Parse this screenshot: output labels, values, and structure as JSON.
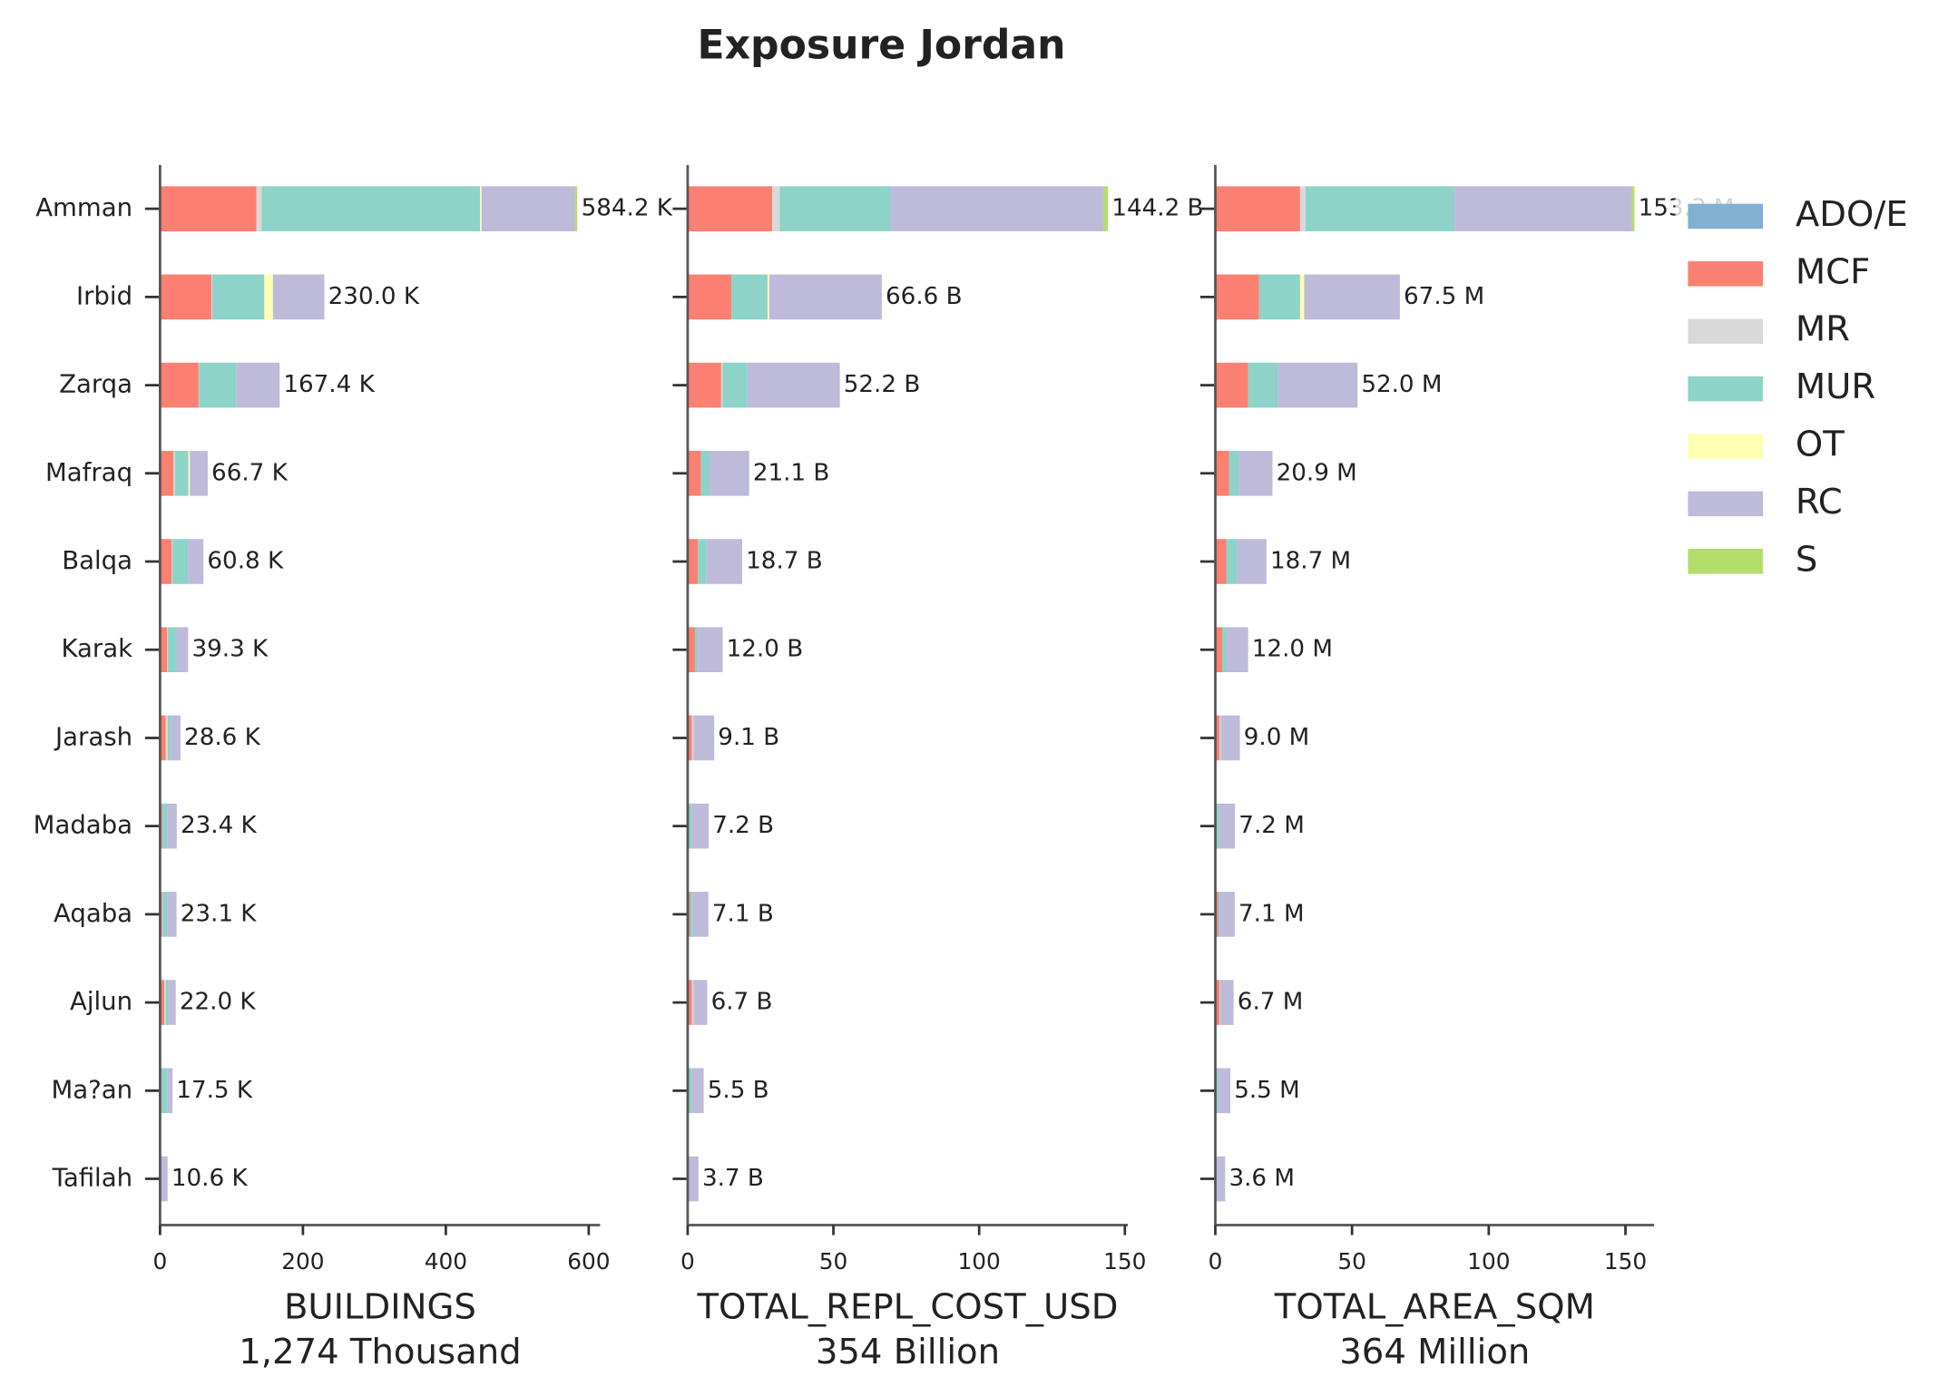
{
  "title": "Exposure Jordan",
  "chart_data": [
    {
      "type": "barh",
      "xlabel": "BUILDINGS",
      "total_label": "1,274 Thousand",
      "categories": [
        "Amman",
        "Irbid",
        "Zarqa",
        "Mafraq",
        "Balqa",
        "Karak",
        "Jarash",
        "Madaba",
        "Aqaba",
        "Ajlun",
        "Ma?an",
        "Tafilah"
      ],
      "xlim": [
        0,
        616
      ],
      "xticks": [
        0,
        200,
        400,
        600
      ],
      "series": [
        {
          "name": "ADO/E",
          "color": "#80b1d3",
          "values": [
            0,
            0,
            0,
            0,
            0,
            0,
            0,
            0,
            0,
            0,
            0,
            0
          ]
        },
        {
          "name": "MCF",
          "color": "#fb8072",
          "values": [
            135,
            72,
            54,
            19,
            16,
            10,
            8,
            3,
            3,
            6,
            2,
            1
          ]
        },
        {
          "name": "MR",
          "color": "#d9d9d9",
          "values": [
            7,
            1,
            0.4,
            1.7,
            1,
            1,
            3,
            0,
            1,
            2,
            0,
            0
          ]
        },
        {
          "name": "MUR",
          "color": "#8dd3c7",
          "values": [
            306,
            73,
            52,
            19,
            22,
            12,
            4,
            7,
            6,
            4,
            8,
            0
          ]
        },
        {
          "name": "OT",
          "color": "#ffffb3",
          "values": [
            2,
            12,
            0,
            2,
            0,
            0,
            0,
            0,
            0,
            0,
            0,
            0
          ]
        },
        {
          "name": "RC",
          "color": "#bebada",
          "values": [
            131,
            72,
            61,
            25,
            21.8,
            16.3,
            13.6,
            13.4,
            13.1,
            10,
            7.5,
            9.6
          ]
        },
        {
          "name": "S",
          "color": "#b3de69",
          "values": [
            3,
            0,
            0,
            0,
            0,
            0,
            0,
            0,
            0,
            0,
            0,
            0
          ]
        }
      ],
      "totals": [
        584.2,
        230.0,
        167.4,
        66.7,
        60.8,
        39.3,
        28.6,
        23.4,
        23.1,
        22.0,
        17.5,
        10.6
      ],
      "total_labels": [
        "584.2 K",
        "230.0 K",
        "167.4 K",
        "66.7 K",
        "60.8 K",
        "39.3 K",
        "28.6 K",
        "23.4 K",
        "23.1 K",
        "22.0 K",
        "17.5 K",
        "10.6 K"
      ]
    },
    {
      "type": "barh",
      "xlabel": "TOTAL_REPL_COST_USD",
      "total_label": "354 Billion",
      "xlim": [
        0,
        151
      ],
      "xticks": [
        0,
        50,
        100,
        150
      ],
      "series": [
        {
          "name": "ADO/E",
          "color": "#80b1d3",
          "values": [
            0,
            0,
            0,
            0,
            0,
            0,
            0,
            0,
            0,
            0,
            0,
            0
          ]
        },
        {
          "name": "MCF",
          "color": "#fb8072",
          "values": [
            29,
            15,
            11.5,
            4.5,
            3.5,
            2.5,
            1.5,
            0.5,
            0.8,
            1.5,
            0.5,
            0.2
          ]
        },
        {
          "name": "MR",
          "color": "#d9d9d9",
          "values": [
            2.6,
            0,
            0.5,
            0,
            0,
            0,
            0.5,
            0,
            0,
            0.5,
            0,
            0
          ]
        },
        {
          "name": "MUR",
          "color": "#8dd3c7",
          "values": [
            38,
            12.4,
            8.5,
            3,
            3,
            1,
            0,
            1,
            1,
            0,
            1,
            0
          ]
        },
        {
          "name": "OT",
          "color": "#ffffb3",
          "values": [
            0,
            0.6,
            0,
            0,
            0,
            0,
            0,
            0,
            0,
            0,
            0,
            0
          ]
        },
        {
          "name": "RC",
          "color": "#bebada",
          "values": [
            73,
            38.6,
            31.7,
            13.6,
            12.2,
            8.5,
            7.1,
            5.7,
            5.3,
            4.7,
            4,
            3.5
          ]
        },
        {
          "name": "S",
          "color": "#b3de69",
          "values": [
            1.6,
            0,
            0,
            0,
            0,
            0,
            0,
            0,
            0,
            0,
            0,
            0
          ]
        }
      ],
      "totals": [
        144.2,
        66.6,
        52.2,
        21.1,
        18.7,
        12.0,
        9.1,
        7.2,
        7.1,
        6.7,
        5.5,
        3.7
      ],
      "total_labels": [
        "144.2 B",
        "66.6 B",
        "52.2 B",
        "21.1 B",
        "18.7 B",
        "12.0 B",
        "9.1 B",
        "7.2 B",
        "7.1 B",
        "6.7 B",
        "5.5 B",
        "3.7 B"
      ]
    },
    {
      "type": "barh",
      "xlabel": "TOTAL_AREA_SQM",
      "total_label": "364 Million",
      "xlim": [
        0,
        160.5
      ],
      "xticks": [
        0,
        50,
        100,
        150
      ],
      "series": [
        {
          "name": "ADO/E",
          "color": "#80b1d3",
          "values": [
            0,
            0,
            0,
            0,
            0,
            0,
            0,
            0,
            0,
            0,
            0,
            0
          ]
        },
        {
          "name": "MCF",
          "color": "#fb8072",
          "values": [
            31,
            16,
            12,
            5,
            4,
            2.5,
            1.5,
            0.5,
            1,
            1.5,
            0.5,
            0.2
          ]
        },
        {
          "name": "MR",
          "color": "#d9d9d9",
          "values": [
            2,
            0,
            0,
            0,
            0,
            0,
            0.5,
            0,
            0,
            0.3,
            0,
            0
          ]
        },
        {
          "name": "MUR",
          "color": "#8dd3c7",
          "values": [
            54.5,
            15,
            11,
            3.5,
            4,
            1.5,
            0,
            1,
            0.5,
            0,
            0.5,
            0
          ]
        },
        {
          "name": "OT",
          "color": "#ffffb3",
          "values": [
            0,
            1.5,
            0,
            0,
            0,
            0,
            0,
            0,
            0,
            0,
            0,
            0
          ]
        },
        {
          "name": "RC",
          "color": "#bebada",
          "values": [
            64.8,
            35,
            29,
            12.4,
            10.7,
            8,
            7,
            5.7,
            5.6,
            4.9,
            4.5,
            3.4
          ]
        },
        {
          "name": "S",
          "color": "#b3de69",
          "values": [
            1,
            0,
            0,
            0,
            0,
            0,
            0,
            0,
            0,
            0,
            0,
            0
          ]
        }
      ],
      "totals": [
        153.3,
        67.5,
        52.0,
        20.9,
        18.7,
        12.0,
        9.0,
        7.2,
        7.1,
        6.7,
        5.5,
        3.6
      ],
      "total_labels": [
        "153.3 M",
        "67.5 M",
        "52.0 M",
        "20.9 M",
        "18.7 M",
        "12.0 M",
        "9.0 M",
        "7.2 M",
        "7.1 M",
        "6.7 M",
        "5.5 M",
        "3.6 M"
      ]
    }
  ]
}
